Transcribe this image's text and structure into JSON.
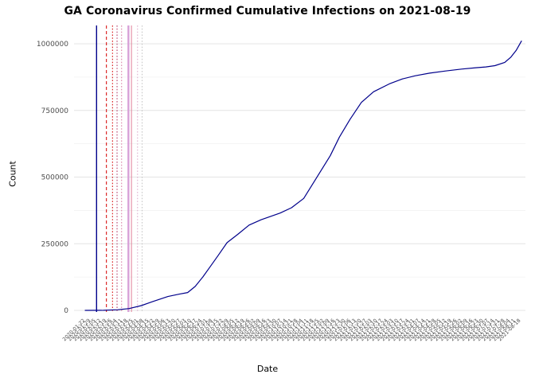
{
  "chart_data": {
    "type": "line",
    "title": "GA Coronavirus Confirmed Cumulative Infections on 2021-08-19",
    "xlabel": "Date",
    "ylabel": "Count",
    "x_domain": [
      "2020-01-22",
      "2021-08-19"
    ],
    "ylim": [
      0,
      1000000
    ],
    "grid": "horizontal major and minor gridlines, light gray, white panel background",
    "legend": "none",
    "colors": {
      "line": "#00008b",
      "grid_major": "#e4e4e4",
      "grid_minor": "#f1f1f1",
      "tick_text": "#4d4d4d",
      "background": "#ffffff"
    },
    "y_ticks": [
      0,
      250000,
      500000,
      750000,
      1000000
    ],
    "y_tick_labels": [
      "0",
      "250000",
      "500000",
      "750000",
      "1000000"
    ],
    "x_tick_labels": [
      "2020-01-22",
      "2020-01-29",
      "2020-02-05",
      "2020-02-12",
      "2020-02-19",
      "2020-02-26",
      "2020-03-04",
      "2020-03-11",
      "2020-03-18",
      "2020-03-25",
      "2020-04-01",
      "2020-04-08",
      "2020-04-15",
      "2020-04-22",
      "2020-04-29",
      "2020-05-06",
      "2020-05-13",
      "2020-05-20",
      "2020-05-27",
      "2020-06-03",
      "2020-06-10",
      "2020-06-17",
      "2020-06-24",
      "2020-07-01",
      "2020-07-08",
      "2020-07-15",
      "2020-07-22",
      "2020-07-29",
      "2020-08-05",
      "2020-08-12",
      "2020-08-19",
      "2020-08-26",
      "2020-09-02",
      "2020-09-09",
      "2020-09-16",
      "2020-09-23",
      "2020-09-30",
      "2020-10-07",
      "2020-10-14",
      "2020-10-21",
      "2020-10-28",
      "2020-11-04",
      "2020-11-11",
      "2020-11-18",
      "2020-11-25",
      "2020-12-02",
      "2020-12-09",
      "2020-12-16",
      "2020-12-23",
      "2020-12-30",
      "2021-01-06",
      "2021-01-13",
      "2021-01-20",
      "2021-01-27",
      "2021-02-03",
      "2021-02-10",
      "2021-02-17",
      "2021-02-24",
      "2021-03-03",
      "2021-03-10",
      "2021-03-17",
      "2021-03-24",
      "2021-03-31",
      "2021-04-07",
      "2021-04-14",
      "2021-04-21",
      "2021-04-28",
      "2021-05-05",
      "2021-05-12",
      "2021-05-19",
      "2021-05-26",
      "2021-06-02",
      "2021-06-09",
      "2021-06-16",
      "2021-06-23",
      "2021-06-30",
      "2021-07-07",
      "2021-07-14",
      "2021-07-21",
      "2021-07-28",
      "2021-08-04",
      "2021-08-11",
      "2021-08-18"
    ],
    "series": [
      {
        "name": "Confirmed cumulative infections",
        "points": [
          [
            "2020-01-22",
            0
          ],
          [
            "2020-02-15",
            300
          ],
          [
            "2020-03-05",
            2500
          ],
          [
            "2020-03-20",
            7000
          ],
          [
            "2020-04-05",
            18000
          ],
          [
            "2020-04-20",
            33000
          ],
          [
            "2020-05-10",
            52000
          ],
          [
            "2020-05-25",
            61000
          ],
          [
            "2020-06-05",
            67000
          ],
          [
            "2020-06-15",
            90000
          ],
          [
            "2020-06-25",
            125000
          ],
          [
            "2020-07-05",
            165000
          ],
          [
            "2020-07-15",
            205000
          ],
          [
            "2020-07-27",
            254000
          ],
          [
            "2020-08-10",
            285000
          ],
          [
            "2020-08-25",
            320000
          ],
          [
            "2020-09-10",
            340000
          ],
          [
            "2020-09-22",
            352000
          ],
          [
            "2020-10-05",
            365000
          ],
          [
            "2020-10-20",
            385000
          ],
          [
            "2020-11-05",
            420000
          ],
          [
            "2020-11-24",
            507000
          ],
          [
            "2020-12-10",
            580000
          ],
          [
            "2020-12-22",
            650000
          ],
          [
            "2021-01-05",
            716000
          ],
          [
            "2021-01-20",
            780000
          ],
          [
            "2021-02-05",
            820000
          ],
          [
            "2021-02-27",
            851000
          ],
          [
            "2021-03-15",
            868000
          ],
          [
            "2021-04-01",
            880000
          ],
          [
            "2021-04-20",
            890000
          ],
          [
            "2021-05-11",
            898000
          ],
          [
            "2021-06-01",
            905000
          ],
          [
            "2021-06-20",
            910000
          ],
          [
            "2021-07-03",
            913000
          ],
          [
            "2021-07-15",
            918000
          ],
          [
            "2021-07-28",
            930000
          ],
          [
            "2021-08-05",
            950000
          ],
          [
            "2021-08-12",
            975000
          ],
          [
            "2021-08-19",
            1010000
          ]
        ]
      }
    ],
    "event_vlines": [
      {
        "date": "2020-02-06",
        "color": "#00008b",
        "style": "solid",
        "width": 1.4
      },
      {
        "date": "2020-02-19",
        "color": "#d40000",
        "style": "dashed",
        "width": 1
      },
      {
        "date": "2020-02-27",
        "color": "#d40000",
        "style": "dotted",
        "width": 1
      },
      {
        "date": "2020-03-04",
        "color": "#b03060",
        "style": "dotted",
        "width": 1
      },
      {
        "date": "2020-03-10",
        "color": "#d878a0",
        "style": "dotted",
        "width": 1
      },
      {
        "date": "2020-03-19",
        "color": "#d8a0d8",
        "style": "solid",
        "width": 2.4
      },
      {
        "date": "2020-03-23",
        "color": "#e08098",
        "style": "solid",
        "width": 1
      },
      {
        "date": "2020-03-31",
        "color": "#dcaacb",
        "style": "dotted",
        "width": 1
      },
      {
        "date": "2020-04-06",
        "color": "#c4c4c4",
        "style": "dotted",
        "width": 1
      }
    ]
  }
}
